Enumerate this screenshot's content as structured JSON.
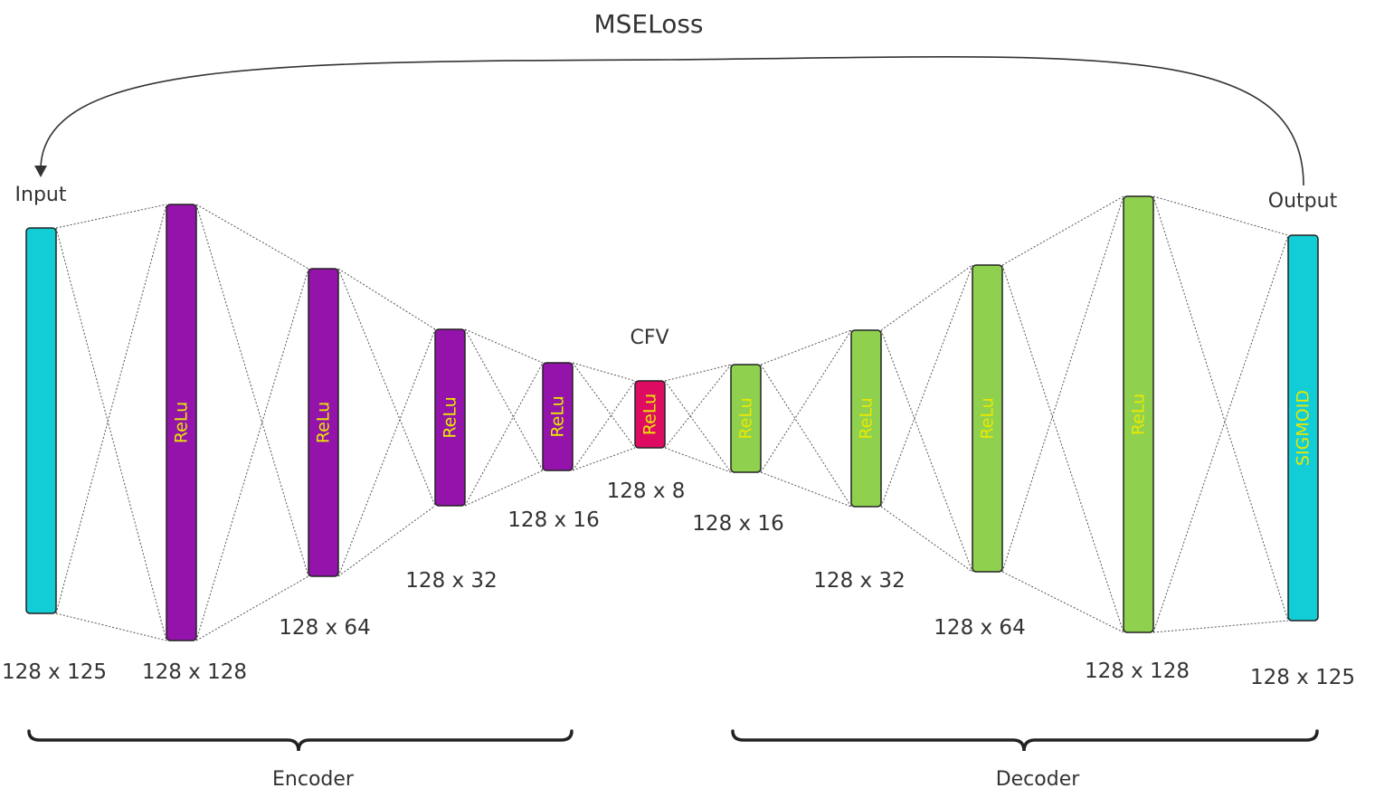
{
  "loss_label": "MSELoss",
  "input_label": "Input",
  "output_label": "Output",
  "bottleneck_label": "CFV",
  "encoder_label": "Encoder",
  "decoder_label": "Decoder",
  "colors": {
    "input_output": "#12ccd6",
    "encoder": "#9313ab",
    "bottleneck": "#dd0b62",
    "decoder": "#8fd14f",
    "activation_text": "#e8e800",
    "connections": "#555555"
  },
  "layers": [
    {
      "id": "input",
      "dims": "128 x 125",
      "activation": "",
      "color_key": "input_output"
    },
    {
      "id": "enc1",
      "dims": "128 x 128",
      "activation": "ReLu",
      "color_key": "encoder"
    },
    {
      "id": "enc2",
      "dims": "128 x 64",
      "activation": "ReLu",
      "color_key": "encoder"
    },
    {
      "id": "enc3",
      "dims": "128 x 32",
      "activation": "ReLu",
      "color_key": "encoder"
    },
    {
      "id": "enc4",
      "dims": "128 x 16",
      "activation": "ReLu",
      "color_key": "encoder"
    },
    {
      "id": "bottleneck",
      "dims": "128 x 8",
      "activation": "ReLu",
      "color_key": "bottleneck"
    },
    {
      "id": "dec1",
      "dims": "128 x 16",
      "activation": "ReLu",
      "color_key": "decoder"
    },
    {
      "id": "dec2",
      "dims": "128 x 32",
      "activation": "ReLu",
      "color_key": "decoder"
    },
    {
      "id": "dec3",
      "dims": "128 x 64",
      "activation": "ReLu",
      "color_key": "decoder"
    },
    {
      "id": "dec4",
      "dims": "128 x 128",
      "activation": "ReLu",
      "color_key": "decoder"
    },
    {
      "id": "output",
      "dims": "128 x 125",
      "activation": "SIGMOID",
      "color_key": "input_output"
    }
  ]
}
